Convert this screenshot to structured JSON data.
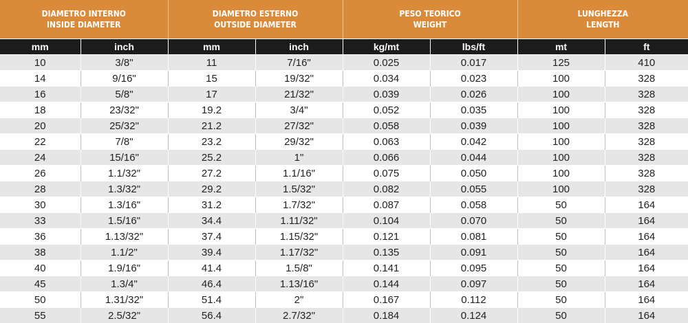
{
  "headers": {
    "groups": [
      {
        "line1": "DIAMETRO INTERNO",
        "line2": "INSIDE DIAMETER"
      },
      {
        "line1": "DIAMETRO ESTERNO",
        "line2": "OUTSIDE DIAMETER"
      },
      {
        "line1": "PESO TEORICO",
        "line2": "WEIGHT"
      },
      {
        "line1": "LUNGHEZZA",
        "line2": "LENGTH"
      }
    ],
    "units": [
      "mm",
      "inch",
      "mm",
      "inch",
      "kg/mt",
      "lbs/ft",
      "mt",
      "ft"
    ]
  },
  "rows": [
    [
      "10",
      "3/8\"",
      "11",
      "7/16\"",
      "0.025",
      "0.017",
      "125",
      "410"
    ],
    [
      "14",
      "9/16\"",
      "15",
      "19/32\"",
      "0.034",
      "0.023",
      "100",
      "328"
    ],
    [
      "16",
      "5/8\"",
      "17",
      "21/32\"",
      "0.039",
      "0.026",
      "100",
      "328"
    ],
    [
      "18",
      "23/32\"",
      "19.2",
      "3/4\"",
      "0.052",
      "0.035",
      "100",
      "328"
    ],
    [
      "20",
      "25/32\"",
      "21.2",
      "27/32\"",
      "0.058",
      "0.039",
      "100",
      "328"
    ],
    [
      "22",
      "7/8\"",
      "23.2",
      "29/32\"",
      "0.063",
      "0.042",
      "100",
      "328"
    ],
    [
      "24",
      "15/16\"",
      "25.2",
      "1\"",
      "0.066",
      "0.044",
      "100",
      "328"
    ],
    [
      "26",
      "1.1/32\"",
      "27.2",
      "1.1/16\"",
      "0.075",
      "0.050",
      "100",
      "328"
    ],
    [
      "28",
      "1.3/32\"",
      "29.2",
      "1.5/32\"",
      "0.082",
      "0.055",
      "100",
      "328"
    ],
    [
      "30",
      "1.3/16\"",
      "31.2",
      "1.7/32\"",
      "0.087",
      "0.058",
      "50",
      "164"
    ],
    [
      "33",
      "1.5/16\"",
      "34.4",
      "1.11/32\"",
      "0.104",
      "0.070",
      "50",
      "164"
    ],
    [
      "36",
      "1.13/32\"",
      "37.4",
      "1.15/32\"",
      "0.121",
      "0.081",
      "50",
      "164"
    ],
    [
      "38",
      "1.1/2\"",
      "39.4",
      "1.17/32\"",
      "0.135",
      "0.091",
      "50",
      "164"
    ],
    [
      "40",
      "1.9/16\"",
      "41.4",
      "1.5/8\"",
      "0.141",
      "0.095",
      "50",
      "164"
    ],
    [
      "45",
      "1.3/4\"",
      "46.4",
      "1.13/16\"",
      "0.144",
      "0.097",
      "50",
      "164"
    ],
    [
      "50",
      "1.31/32\"",
      "51.4",
      "2\"",
      "0.167",
      "0.112",
      "50",
      "164"
    ],
    [
      "55",
      "2.5/32\"",
      "56.4",
      "2.7/32\"",
      "0.184",
      "0.124",
      "50",
      "164"
    ]
  ]
}
